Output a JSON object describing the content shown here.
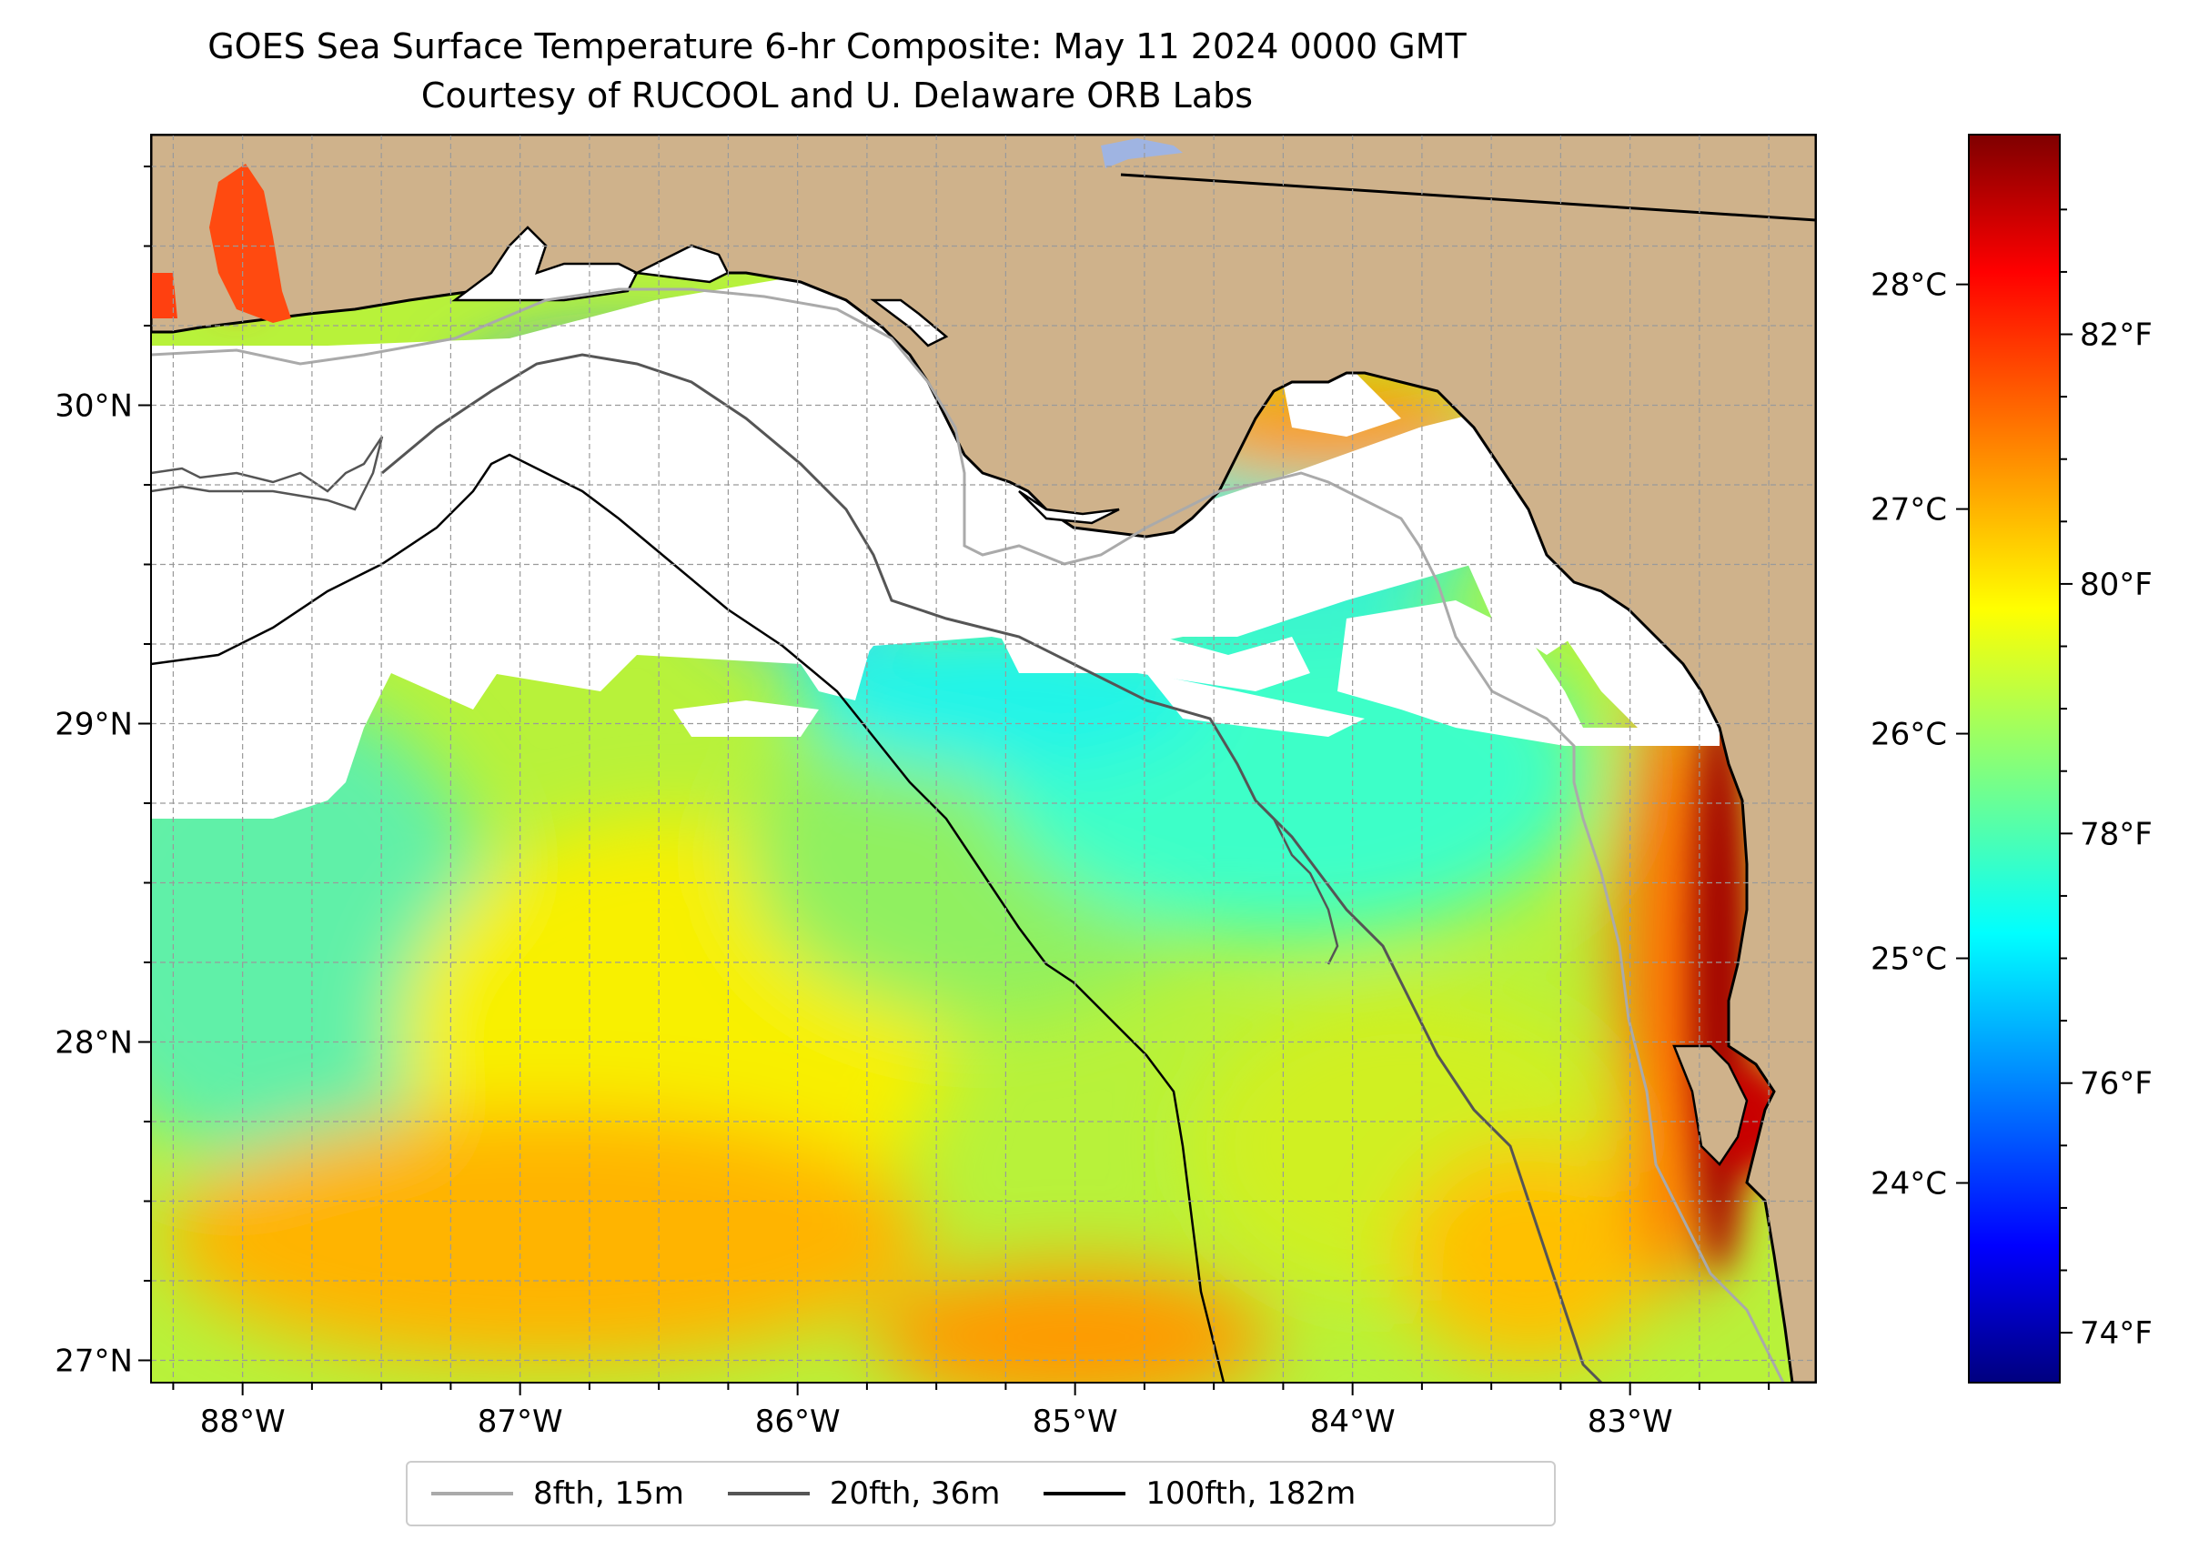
{
  "title": {
    "line1": "GOES Sea Surface Temperature 6-hr Composite: May 11 2024 0000 GMT",
    "line2": "Courtesy of RUCOOL and U. Delaware ORB Labs"
  },
  "map": {
    "lon_range": [
      -88.33,
      -82.33
    ],
    "lat_range": [
      26.93,
      30.85
    ],
    "lon_ticks": [
      {
        "value": -88,
        "label": "88°W"
      },
      {
        "value": -87,
        "label": "87°W"
      },
      {
        "value": -86,
        "label": "86°W"
      },
      {
        "value": -85,
        "label": "85°W"
      },
      {
        "value": -84,
        "label": "84°W"
      },
      {
        "value": -83,
        "label": "83°W"
      }
    ],
    "lat_ticks": [
      {
        "value": 27,
        "label": "27°N"
      },
      {
        "value": 28,
        "label": "28°N"
      },
      {
        "value": 29,
        "label": "29°N"
      },
      {
        "value": 30,
        "label": "30°N"
      }
    ],
    "land_color": "#cfb28b",
    "cloud_color": "#ffffff"
  },
  "colorbar": {
    "colormap": "jet",
    "range_f": [
      73.6,
      83.6
    ],
    "fahrenheit_ticks": [
      {
        "value": 74,
        "label": "74°F"
      },
      {
        "value": 76,
        "label": "76°F"
      },
      {
        "value": 78,
        "label": "78°F"
      },
      {
        "value": 80,
        "label": "80°F"
      },
      {
        "value": 82,
        "label": "82°F"
      }
    ],
    "celsius_ticks": [
      {
        "value": 24,
        "label": "24°C"
      },
      {
        "value": 25,
        "label": "25°C"
      },
      {
        "value": 26,
        "label": "26°C"
      },
      {
        "value": 27,
        "label": "27°C"
      },
      {
        "value": 28,
        "label": "28°C"
      }
    ]
  },
  "legend": [
    {
      "label": "8fth, 15m",
      "color": "#aaaaaa"
    },
    {
      "label": "20fth, 36m",
      "color": "#555555"
    },
    {
      "label": "100fth, 182m",
      "color": "#000000"
    }
  ]
}
